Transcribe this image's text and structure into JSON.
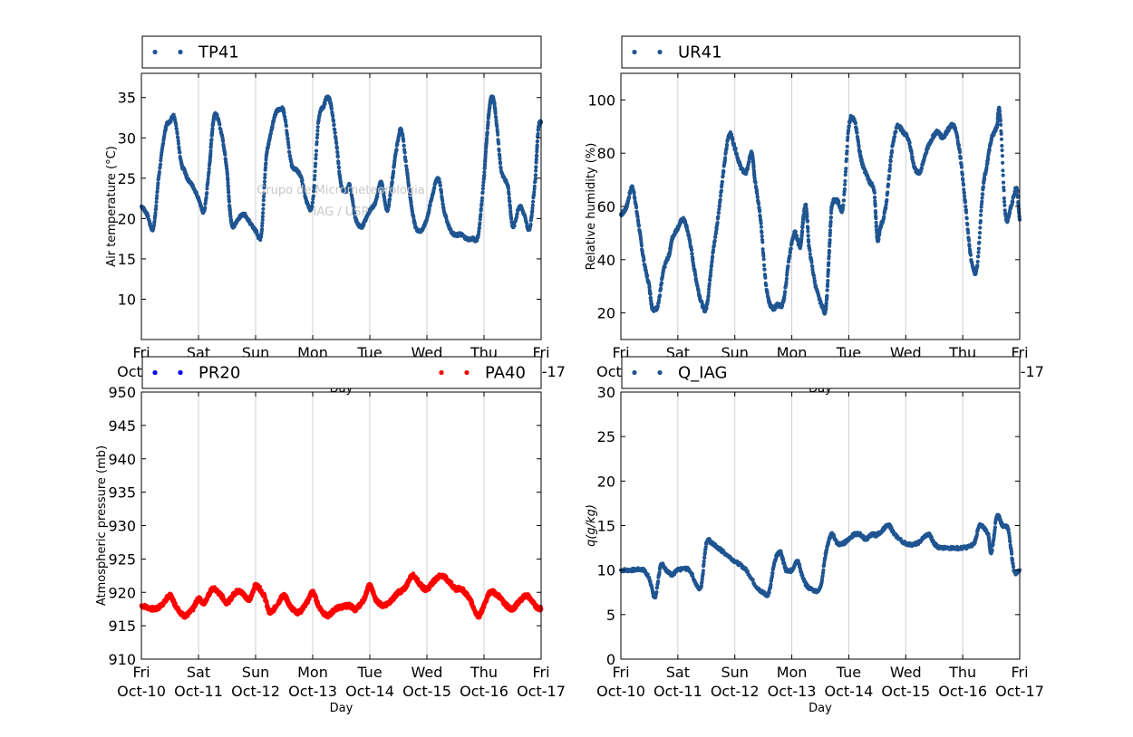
{
  "watermark": {
    "line1": "Grupo de Micrometeorologia",
    "line2": "IAG / USP"
  },
  "days": {
    "weekday": [
      "Fri",
      "Sat",
      "Sun",
      "Mon",
      "Tue",
      "Wed",
      "Thu",
      "Fri"
    ],
    "date": [
      "Oct-10",
      "Oct-11",
      "Oct-12",
      "Oct-13",
      "Oct-14",
      "Oct-15",
      "Oct-16",
      "Oct-17"
    ]
  },
  "colors": {
    "blue": "#1f5591",
    "pure_blue": "#0000ff",
    "red": "#ff0000",
    "grid": "#cfcfcf"
  },
  "chart_data": [
    {
      "type": "scatter",
      "panel": "top-left",
      "xlabel": "Day",
      "ylabel": "Air temperature (°C)",
      "ylim": [
        5,
        38
      ],
      "yticks": [
        10,
        15,
        20,
        25,
        30,
        35
      ],
      "xlim": [
        0,
        7
      ],
      "grid": "vertical",
      "legend": "top",
      "series": [
        {
          "name": "TP41",
          "color": "#1f5591",
          "x": [
            0,
            0.1,
            0.21,
            0.3,
            0.42,
            0.5,
            0.58,
            0.7,
            0.75,
            0.8,
            0.9,
            1.0,
            1.1,
            1.2,
            1.25,
            1.3,
            1.42,
            1.5,
            1.55,
            1.6,
            1.7,
            1.8,
            1.9,
            2.0,
            2.1,
            2.18,
            2.25,
            2.35,
            2.42,
            2.5,
            2.62,
            2.72,
            2.8,
            2.9,
            3.0,
            3.1,
            3.2,
            3.25,
            3.32,
            3.42,
            3.5,
            3.6,
            3.65,
            3.75,
            3.85,
            3.9,
            4.0,
            4.1,
            4.2,
            4.3,
            4.38,
            4.45,
            4.55,
            4.65,
            4.72,
            4.8,
            4.9,
            5.0,
            5.1,
            5.2,
            5.3,
            5.42,
            5.5,
            5.55,
            5.6,
            5.7,
            5.8,
            5.9,
            6.0,
            6.05,
            6.1,
            6.15,
            6.2,
            6.3,
            6.42,
            6.5,
            6.62,
            6.7,
            6.8,
            6.9,
            6.95,
            7.0
          ],
          "y": [
            21.5,
            20.5,
            18.8,
            25,
            31,
            32,
            32.5,
            27,
            26,
            25,
            24,
            22.5,
            21,
            27,
            31.5,
            33,
            30,
            26,
            21,
            19,
            20,
            20.5,
            19.5,
            18.5,
            18,
            27,
            30,
            33,
            33.5,
            33,
            27,
            26,
            25,
            22,
            22,
            32,
            34,
            35,
            34,
            29,
            24,
            23.5,
            24,
            20,
            19,
            19.5,
            21,
            22,
            24.5,
            21,
            24,
            28,
            31,
            26,
            22,
            19,
            18.5,
            20,
            23,
            25,
            21,
            18.5,
            18,
            18,
            18,
            17.5,
            17.5,
            18,
            25,
            30,
            34,
            35,
            33,
            26,
            24,
            19,
            21.5,
            20.5,
            18.8,
            25,
            31,
            32
          ]
        }
      ]
    },
    {
      "type": "scatter",
      "panel": "top-right",
      "xlabel": "Day",
      "ylabel": "Relative humidity (%)",
      "ylim": [
        10,
        110
      ],
      "yticks": [
        20,
        40,
        60,
        80,
        100
      ],
      "xlim": [
        0,
        7
      ],
      "grid": "vertical",
      "legend": "top",
      "series": [
        {
          "name": "UR41",
          "color": "#1f5591",
          "x": [
            0,
            0.1,
            0.2,
            0.3,
            0.4,
            0.5,
            0.55,
            0.65,
            0.75,
            0.85,
            0.9,
            1.0,
            1.1,
            1.2,
            1.3,
            1.4,
            1.5,
            1.6,
            1.7,
            1.8,
            1.9,
            2.0,
            2.1,
            2.2,
            2.3,
            2.35,
            2.45,
            2.55,
            2.65,
            2.75,
            2.85,
            2.95,
            3.05,
            3.15,
            3.2,
            3.25,
            3.3,
            3.42,
            3.55,
            3.6,
            3.65,
            3.7,
            3.8,
            3.9,
            4.0,
            4.1,
            4.2,
            4.25,
            4.35,
            4.45,
            4.5,
            4.55,
            4.65,
            4.75,
            4.85,
            4.95,
            5.05,
            5.15,
            5.25,
            5.35,
            5.45,
            5.55,
            5.65,
            5.75,
            5.85,
            5.95,
            6.05,
            6.15,
            6.25,
            6.35,
            6.42,
            6.5,
            6.6,
            6.65,
            6.75,
            6.85,
            6.95,
            7.0
          ],
          "y": [
            57,
            60,
            67,
            55,
            40,
            30,
            22,
            23,
            36,
            42,
            48,
            52,
            55,
            48,
            35,
            25,
            22,
            40,
            55,
            73,
            87,
            82,
            75,
            73,
            80,
            70,
            55,
            30,
            22,
            23,
            24,
            40,
            50,
            45,
            55,
            60,
            45,
            30,
            22,
            22,
            40,
            60,
            62,
            60,
            90,
            92,
            80,
            75,
            70,
            65,
            48,
            52,
            60,
            80,
            90,
            88,
            85,
            75,
            73,
            80,
            85,
            88,
            86,
            89,
            90,
            80,
            60,
            40,
            37,
            65,
            75,
            85,
            90,
            95,
            57,
            60,
            67,
            55
          ]
        }
      ]
    },
    {
      "type": "scatter",
      "panel": "bottom-left",
      "xlabel": "Day",
      "ylabel": "Atmospheric pressure (mb)",
      "ylim": [
        910,
        950
      ],
      "yticks": [
        910,
        915,
        920,
        925,
        930,
        935,
        940,
        945,
        950
      ],
      "xlim": [
        0,
        7
      ],
      "grid": "vertical",
      "legend": "top",
      "series": [
        {
          "name": "PR20",
          "color": "#0000ff",
          "x": [],
          "y": []
        },
        {
          "name": "PA40",
          "color": "#ff0000",
          "x": [
            0,
            0.25,
            0.4,
            0.5,
            0.6,
            0.75,
            0.9,
            1.0,
            1.1,
            1.25,
            1.4,
            1.5,
            1.65,
            1.75,
            1.9,
            2.0,
            2.15,
            2.25,
            2.4,
            2.5,
            2.6,
            2.75,
            2.9,
            3.0,
            3.1,
            3.25,
            3.4,
            3.5,
            3.65,
            3.75,
            3.9,
            4.0,
            4.1,
            4.25,
            4.4,
            4.5,
            4.6,
            4.75,
            4.9,
            5.0,
            5.1,
            5.25,
            5.4,
            5.5,
            5.6,
            5.75,
            5.9,
            6.0,
            6.1,
            6.25,
            6.4,
            6.5,
            6.6,
            6.75,
            6.9,
            7.0
          ],
          "y": [
            918,
            917.5,
            918.5,
            919.5,
            918,
            916.5,
            917.5,
            919,
            918.5,
            920.5,
            919.5,
            918.5,
            920,
            920,
            919,
            921,
            919.5,
            917,
            918.5,
            919.5,
            918,
            917,
            918.5,
            920,
            918,
            916.5,
            917.5,
            917.8,
            918,
            917.5,
            919,
            921,
            919,
            918,
            919,
            920,
            920.5,
            922.5,
            921,
            920.5,
            921.5,
            922.5,
            921.5,
            920.5,
            920.5,
            919,
            916.5,
            918,
            920,
            919.5,
            918,
            917.5,
            918.5,
            919.5,
            918,
            917.5
          ]
        }
      ]
    },
    {
      "type": "scatter",
      "panel": "bottom-right",
      "xlabel": "Day",
      "ylabel": "q(g/kg)",
      "ylim": [
        0,
        30
      ],
      "yticks": [
        0,
        5,
        10,
        15,
        20,
        25,
        30
      ],
      "xlim": [
        0,
        7
      ],
      "grid": "vertical",
      "legend": "top",
      "series": [
        {
          "name": "Q_IAG",
          "color": "#1f5591",
          "x": [
            0,
            0.2,
            0.4,
            0.5,
            0.6,
            0.7,
            0.8,
            0.9,
            1.0,
            1.2,
            1.4,
            1.5,
            1.6,
            1.7,
            1.8,
            2.0,
            2.2,
            2.4,
            2.5,
            2.6,
            2.7,
            2.8,
            2.85,
            2.9,
            3.0,
            3.1,
            3.2,
            3.3,
            3.5,
            3.6,
            3.7,
            3.8,
            3.9,
            4.0,
            4.1,
            4.2,
            4.3,
            4.4,
            4.5,
            4.7,
            4.8,
            5.0,
            5.2,
            5.4,
            5.5,
            5.6,
            5.8,
            6.0,
            6.2,
            6.3,
            6.45,
            6.5,
            6.6,
            6.7,
            6.8,
            6.9,
            7.0
          ],
          "y": [
            10,
            10,
            10,
            9,
            7,
            10.5,
            10,
            9.5,
            10,
            10,
            8,
            13,
            13,
            12.5,
            12,
            11,
            10,
            8,
            7.5,
            7.5,
            11,
            12,
            11,
            10,
            10,
            11,
            9,
            8,
            8,
            12,
            14,
            13,
            13,
            13.5,
            14,
            14,
            13.5,
            14,
            14,
            15,
            14,
            13,
            13,
            14,
            13,
            12.5,
            12.5,
            12.5,
            13,
            15,
            14,
            12,
            16,
            15,
            14.5,
            10,
            10
          ]
        }
      ]
    }
  ]
}
